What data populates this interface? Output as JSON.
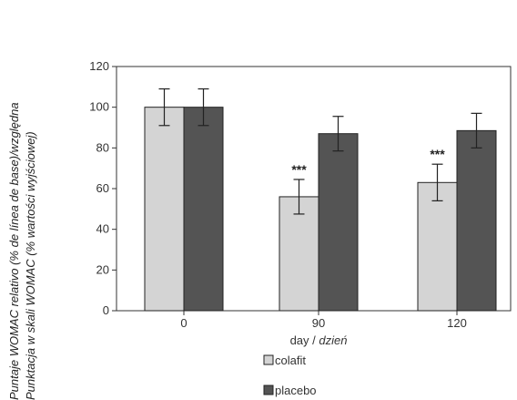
{
  "chart_data": {
    "type": "bar",
    "categories": [
      "0",
      "90",
      "120"
    ],
    "xlabel": {
      "main": "day / ",
      "italic": "dzień"
    },
    "ylabel": [
      "Puntaje WOMAC relativo (% de línea de base)/względna",
      "Punktacja w skali WOMAC (% wartości wyjściowej)"
    ],
    "ylim": [
      0,
      120
    ],
    "yticks": [
      0,
      20,
      40,
      60,
      80,
      100,
      120
    ],
    "grid": false,
    "legend_position": "bottom-center",
    "series": [
      {
        "name": "colafit",
        "color": "#d4d4d4",
        "values": [
          100,
          56,
          63
        ],
        "errors": [
          9,
          8.5,
          9
        ],
        "annotations": [
          "",
          "***",
          "***"
        ]
      },
      {
        "name": "placebo",
        "color": "#545454",
        "values": [
          100,
          87,
          88.5
        ],
        "errors": [
          9,
          8.5,
          8.5
        ],
        "annotations": [
          "",
          "",
          ""
        ]
      }
    ]
  }
}
